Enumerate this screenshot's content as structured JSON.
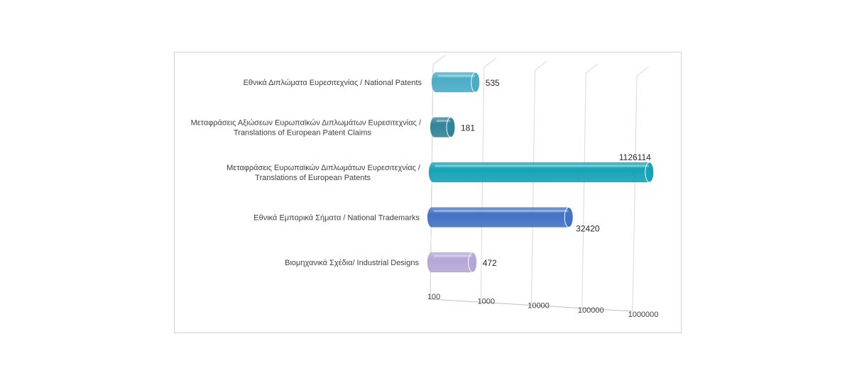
{
  "chart_data": {
    "type": "bar",
    "orientation": "horizontal",
    "style": "3d-cylinder",
    "x_scale": "log",
    "xlim": [
      100,
      1000000
    ],
    "grid": true,
    "legend": "none",
    "xticks": [
      "100",
      "1000",
      "10000",
      "100000",
      "1000000"
    ],
    "categories": [
      [
        "Εθνικά Διπλώματα Ευρεσιτεχνίας / National Patents"
      ],
      [
        "Μεταφράσεις Αξιώσεων Ευρωπαϊκών Διπλωμάτων Ευρεσιτεχνίας /",
        "Translations of European Patent Claims"
      ],
      [
        "Μεταφράσεις Ευρωπαϊκών Διπλωμάτων Ευρεσιτεχνίας /",
        "Translations of European Patents"
      ],
      [
        "Εθνικά Εμπορικά Σήματα / National Trademarks"
      ],
      [
        "Βιομηχανικά Σχέδια/ Industrial Designs"
      ]
    ],
    "values": [
      535,
      181,
      1126114,
      32420,
      472
    ],
    "value_labels": [
      "535",
      "181",
      "1126114",
      "32420",
      "472"
    ],
    "colors": [
      "#4bacc6",
      "#31849b",
      "#17a2b8",
      "#4472c4",
      "#b4a7d6"
    ]
  }
}
